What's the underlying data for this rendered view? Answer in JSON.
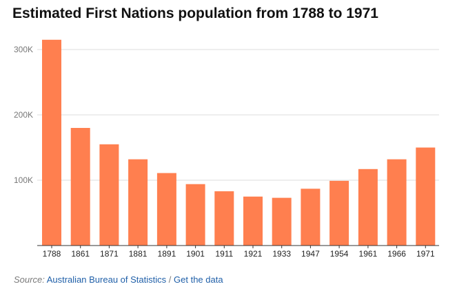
{
  "chart_data": {
    "type": "bar",
    "title": "Estimated First Nations population from 1788 to 1971",
    "xlabel": "",
    "ylabel": "",
    "categories": [
      "1788",
      "1861",
      "1871",
      "1881",
      "1891",
      "1901",
      "1911",
      "1921",
      "1933",
      "1947",
      "1954",
      "1961",
      "1966",
      "1971"
    ],
    "values": [
      315000,
      180000,
      155000,
      132000,
      111000,
      94000,
      83000,
      75000,
      73000,
      87000,
      99000,
      117000,
      132000,
      150000
    ],
    "ylim": [
      0,
      300000
    ],
    "yticks": [
      {
        "value": 100000,
        "label": "100K"
      },
      {
        "value": 200000,
        "label": "200K"
      },
      {
        "value": 300000,
        "label": "300K"
      }
    ],
    "grid": true,
    "bar_color": "#ff7f4f"
  },
  "source": {
    "label": "Source:",
    "publisher": "Australian Bureau of Statistics",
    "separator": "/",
    "link_text": "Get the data"
  }
}
